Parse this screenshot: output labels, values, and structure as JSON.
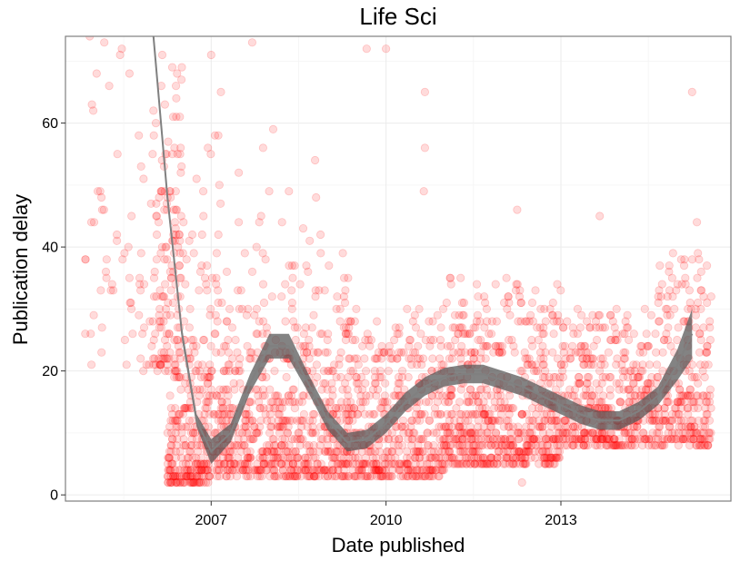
{
  "chart_data": {
    "type": "scatter",
    "title": "Life Sci",
    "xlabel": "Date published",
    "ylabel": "Publication delay",
    "x_ticks": [
      "2007",
      "2010",
      "2013"
    ],
    "y_ticks": [
      0,
      20,
      40,
      60
    ],
    "xlim": [
      "2004-07-01",
      "2015-12-01"
    ],
    "ylim": [
      -1,
      74
    ],
    "grid": true,
    "legend": "none",
    "colors": {
      "points": "#ff0000",
      "points_opacity": 0.14,
      "smooth_line": "#808080",
      "confidence_band": "#595959",
      "panel_border": "#7f7f7f",
      "grid": "#ebebeb"
    },
    "series": [
      {
        "kind": "scatter",
        "clusters": [
          {
            "x_range": [
              "2004-11-01",
              "2006-01-01"
            ],
            "y_range": [
              20,
              75
            ],
            "count": 60
          },
          {
            "x_range": [
              "2006-01-01",
              "2006-07-01"
            ],
            "y_range": [
              20,
              75
            ],
            "count": 130
          },
          {
            "x_range": [
              "2006-04-01",
              "2007-01-01"
            ],
            "y_range": [
              2,
              25
            ],
            "count": 260
          },
          {
            "x_range": [
              "2006-03-01",
              "2007-03-01"
            ],
            "y_range": [
              25,
              62
            ],
            "count": 50
          },
          {
            "x_range": [
              "2007-01-01",
              "2009-06-01"
            ],
            "y_range": [
              3,
              30
            ],
            "count": 700
          },
          {
            "x_range": [
              "2007-01-01",
              "2009-06-01"
            ],
            "y_range": [
              30,
              62
            ],
            "count": 60
          },
          {
            "x_range": [
              "2009-06-01",
              "2011-01-01"
            ],
            "y_range": [
              3,
              30
            ],
            "count": 450
          },
          {
            "x_range": [
              "2011-01-01",
              "2013-01-01"
            ],
            "y_range": [
              5,
              35
            ],
            "count": 650
          },
          {
            "x_range": [
              "2013-01-01",
              "2014-09-01"
            ],
            "y_range": [
              8,
              30
            ],
            "count": 450
          },
          {
            "x_range": [
              "2014-09-01",
              "2015-08-01"
            ],
            "y_range": [
              8,
              40
            ],
            "count": 260
          }
        ],
        "outliers": [
          {
            "x": "2004-12-01",
            "y": 74
          },
          {
            "x": "2005-03-01",
            "y": 73
          },
          {
            "x": "2007-01-01",
            "y": 71
          },
          {
            "x": "2007-03-01",
            "y": 65
          },
          {
            "x": "2007-09-15",
            "y": 73
          },
          {
            "x": "2009-09-01",
            "y": 72
          },
          {
            "x": "2010-01-01",
            "y": 72
          },
          {
            "x": "2010-09-01",
            "y": 65
          },
          {
            "x": "2010-09-01",
            "y": 56
          },
          {
            "x": "2010-08-25",
            "y": 49
          },
          {
            "x": "2013-09-01",
            "y": 45
          },
          {
            "x": "2012-04-01",
            "y": 46
          },
          {
            "x": "2015-04-01",
            "y": 65
          },
          {
            "x": "2015-05-01",
            "y": 44
          },
          {
            "x": "2005-04-01",
            "y": 66
          },
          {
            "x": "2004-12-15",
            "y": 63
          },
          {
            "x": "2012-05-01",
            "y": 2
          }
        ]
      },
      {
        "kind": "smooth",
        "points": [
          {
            "x": "2006-01-01",
            "y": 75,
            "lo": 74,
            "hi": 76
          },
          {
            "x": "2006-04-01",
            "y": 48,
            "lo": 47,
            "hi": 49
          },
          {
            "x": "2006-07-01",
            "y": 26,
            "lo": 25,
            "hi": 27
          },
          {
            "x": "2006-10-01",
            "y": 12,
            "lo": 11,
            "hi": 13
          },
          {
            "x": "2007-01-01",
            "y": 7,
            "lo": 5,
            "hi": 9
          },
          {
            "x": "2007-05-01",
            "y": 10,
            "lo": 8.5,
            "hi": 11.5
          },
          {
            "x": "2007-09-01",
            "y": 18,
            "lo": 16.5,
            "hi": 19.5
          },
          {
            "x": "2008-01-01",
            "y": 24,
            "lo": 22,
            "hi": 26
          },
          {
            "x": "2008-05-01",
            "y": 24,
            "lo": 22,
            "hi": 26
          },
          {
            "x": "2008-09-01",
            "y": 18,
            "lo": 16.5,
            "hi": 19.5
          },
          {
            "x": "2009-01-01",
            "y": 12,
            "lo": 10.5,
            "hi": 13.5
          },
          {
            "x": "2009-05-01",
            "y": 8.5,
            "lo": 7,
            "hi": 10
          },
          {
            "x": "2009-09-01",
            "y": 9,
            "lo": 7.5,
            "hi": 10.5
          },
          {
            "x": "2010-01-01",
            "y": 11.5,
            "lo": 10,
            "hi": 13
          },
          {
            "x": "2010-05-01",
            "y": 15,
            "lo": 13.5,
            "hi": 16.5
          },
          {
            "x": "2010-09-01",
            "y": 17.5,
            "lo": 16,
            "hi": 19
          },
          {
            "x": "2011-01-01",
            "y": 19,
            "lo": 17.5,
            "hi": 20.5
          },
          {
            "x": "2011-05-01",
            "y": 19.5,
            "lo": 18,
            "hi": 21
          },
          {
            "x": "2011-09-01",
            "y": 19.5,
            "lo": 18,
            "hi": 21
          },
          {
            "x": "2012-01-01",
            "y": 18.5,
            "lo": 17,
            "hi": 20
          },
          {
            "x": "2012-05-01",
            "y": 17.5,
            "lo": 16,
            "hi": 19
          },
          {
            "x": "2012-09-01",
            "y": 16,
            "lo": 14.5,
            "hi": 17.5
          },
          {
            "x": "2013-01-01",
            "y": 14.5,
            "lo": 13,
            "hi": 16
          },
          {
            "x": "2013-05-01",
            "y": 13,
            "lo": 11.5,
            "hi": 14.5
          },
          {
            "x": "2013-09-01",
            "y": 12,
            "lo": 10.5,
            "hi": 13.5
          },
          {
            "x": "2014-01-01",
            "y": 12,
            "lo": 10.5,
            "hi": 13.5
          },
          {
            "x": "2014-05-01",
            "y": 13.5,
            "lo": 12,
            "hi": 15
          },
          {
            "x": "2014-09-01",
            "y": 16,
            "lo": 14.5,
            "hi": 17.5
          },
          {
            "x": "2015-01-01",
            "y": 21,
            "lo": 18.5,
            "hi": 23.5
          },
          {
            "x": "2015-04-01",
            "y": 26,
            "lo": 22,
            "hi": 30
          }
        ]
      }
    ]
  }
}
